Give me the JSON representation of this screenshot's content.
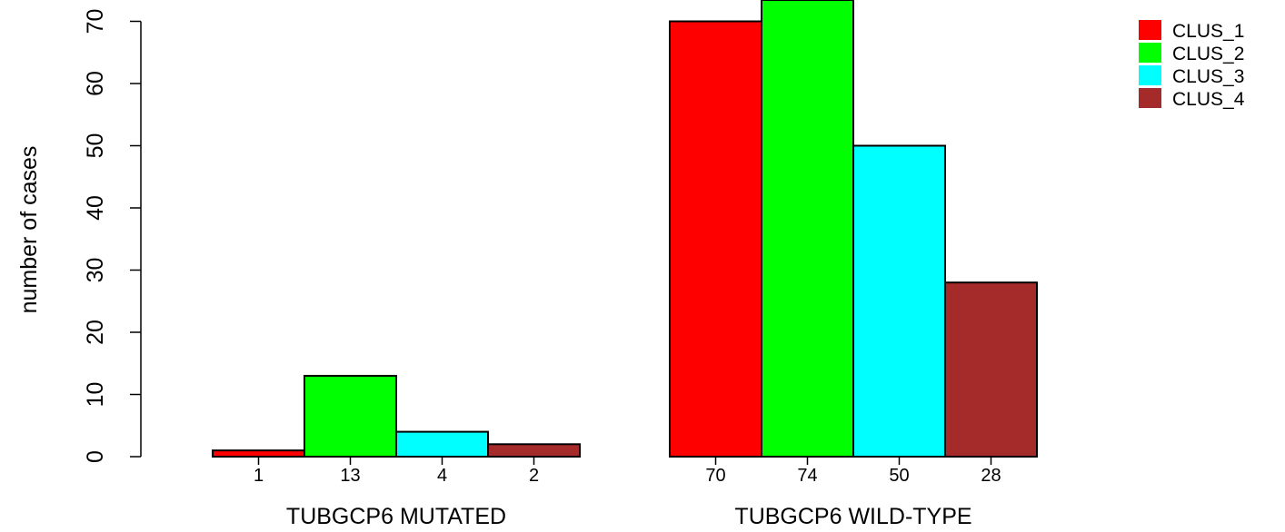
{
  "chart_data": {
    "type": "bar",
    "ylabel": "number of cases",
    "ylim": [
      0,
      76
    ],
    "yticks": [
      0,
      10,
      20,
      30,
      40,
      50,
      60,
      70
    ],
    "groups": [
      {
        "label": "TUBGCP6 MUTATED",
        "values": [
          1,
          13,
          4,
          2
        ]
      },
      {
        "label": "TUBGCP6 WILD-TYPE",
        "values": [
          70,
          74,
          50,
          28
        ]
      }
    ],
    "series": [
      {
        "name": "CLUS_1",
        "color": "#ff0000"
      },
      {
        "name": "CLUS_2",
        "color": "#00ff00"
      },
      {
        "name": "CLUS_3",
        "color": "#00ffff"
      },
      {
        "name": "CLUS_4",
        "color": "#a52a2a"
      }
    ],
    "legend_position": "top-right",
    "grid": false
  }
}
